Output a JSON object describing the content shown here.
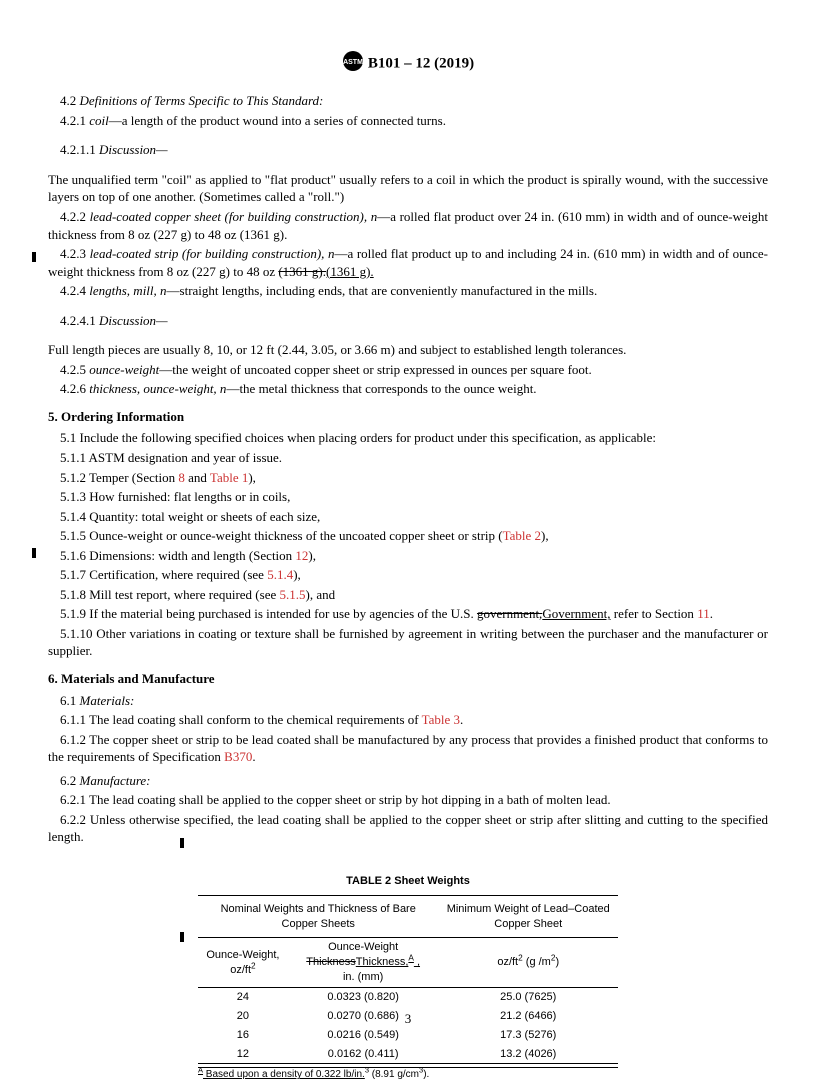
{
  "header": {
    "designation": "B101 – 12 (2019)"
  },
  "s4_2": "4.2 ",
  "s4_2_t": "Definitions of Terms Specific to This Standard:",
  "s4_2_1": "4.2.1 ",
  "coil_term": "coil",
  "coil_def": "—a length of the product wound into a series of connected turns.",
  "s4_2_1_1": "4.2.1.1 ",
  "discussion": "Discussion—",
  "coil_disc": "The unqualified term \"coil\" as applied to \"flat product\" usually refers to a coil in which the product is spirally wound, with the successive layers on top of one another. (Sometimes called a \"roll.\")",
  "s4_2_2": "4.2.2 ",
  "lcsheet_term": "lead-coated copper sheet (for building construction), n",
  "lcsheet_def": "—a rolled flat product over 24 in. (610 mm) in width and of ounce-weight thickness from 8 oz (227 g) to 48 oz (1361 g).",
  "s4_2_3": "4.2.3 ",
  "lcstrip_term": "lead-coated strip (for building construction), n",
  "lcstrip_def_a": "—a rolled flat product up to and including 24 in. (610 mm) in width and of ounce-weight thickness from 8 oz (227 g) to 48 oz ",
  "lcstrip_strike": "(1361 g).",
  "lcstrip_insert": "(1361 g).",
  "s4_2_4": "4.2.4 ",
  "lengths_term": "lengths, mill, n",
  "lengths_def": "—straight lengths, including ends, that are conveniently manufactured in the mills.",
  "s4_2_4_1": "4.2.4.1 ",
  "lengths_disc": "Full length pieces are usually 8, 10, or 12 ft (2.44, 3.05, or 3.66 m) and subject to established length tolerances.",
  "s4_2_5": "4.2.5 ",
  "ow_term": "ounce-weight",
  "ow_def": "—the weight of uncoated copper sheet or strip expressed in ounces per square foot.",
  "s4_2_6": "4.2.6 ",
  "town_term": "thickness, ounce-weight, n",
  "town_def": "—the metal thickness that corresponds to the ounce weight.",
  "s5_head": "5.  Ordering Information",
  "s5_1": "5.1 Include the following specified choices when placing orders for product under this specification, as applicable:",
  "s5_1_1": "5.1.1 ASTM designation and year of issue.",
  "s5_1_2a": "5.1.2 Temper (Section ",
  "link_8": "8",
  "s5_1_2b": " and ",
  "link_t1": "Table 1",
  "s5_1_2c": "),",
  "s5_1_3": "5.1.3 How furnished: flat lengths or in coils,",
  "s5_1_4": "5.1.4 Quantity: total weight or sheets of each size,",
  "s5_1_5a": "5.1.5 Ounce-weight or ounce-weight thickness of the uncoated copper sheet or strip (",
  "link_t2": "Table 2",
  "s5_1_5b": "),",
  "s5_1_6a": "5.1.6 Dimensions: width and length (Section ",
  "link_12": "12",
  "s5_1_6b": "),",
  "s5_1_7a": "5.1.7 Certification, where required (see ",
  "link_514": "5.1.4",
  "s5_1_7b": "),",
  "s5_1_8a": "5.1.8 Mill test report, where required (see ",
  "link_515": "5.1.5",
  "s5_1_8b": "), and",
  "s5_1_9a": "5.1.9 If the material being purchased is intended for use by agencies of the U.S. ",
  "gov_strike": "government,",
  "gov_insert": "Government,",
  "s5_1_9b": " refer to Section ",
  "link_11": "11",
  "s5_1_9c": ".",
  "s5_1_10": "5.1.10 Other variations in coating or texture shall be furnished by agreement in writing between the purchaser and the manufacturer or supplier.",
  "s6_head": "6.  Materials and Manufacture",
  "s6_1": "6.1 ",
  "s6_1_t": "Materials:",
  "s6_1_1a": "6.1.1 The lead coating shall conform to the chemical requirements of ",
  "link_t3": "Table 3",
  "s6_1_1b": ".",
  "s6_1_2a": "6.1.2 The copper sheet or strip to be lead coated shall be manufactured by any process that provides a finished product that conforms to the requirements of Specification ",
  "link_b370": "B370",
  "s6_1_2b": ".",
  "s6_2": "6.2 ",
  "s6_2_t": "Manufacture:",
  "s6_2_1": "6.2.1 The lead coating shall be applied to the copper sheet or strip by hot dipping in a bath of molten lead.",
  "s6_2_2": "6.2.2 Unless otherwise specified, the lead coating shall be applied to the copper sheet or strip after slitting and cutting to the specified length.",
  "table": {
    "title": "TABLE 2 Sheet Weights",
    "head_left": "Nominal Weights and Thickness of Bare Copper Sheets",
    "head_right": "Minimum Weight of Lead–Coated Copper Sheet",
    "col1_a": "Ounce-Weight,",
    "col1_b": "oz/ft",
    "col2_a": "Ounce-Weight",
    "col2_strike": "Thickness",
    "col2_insert": "Thickness,",
    "col2_sup": "A",
    "col2_c": "in. (mm)",
    "col3_a": "oz/ft",
    "col3_b": " (g /m",
    "col3_c": ")",
    "rows": [
      [
        "24",
        "0.0323 (0.820)",
        "25.0 (7625)"
      ],
      [
        "20",
        "0.0270 (0.686)",
        "21.2 (6466)"
      ],
      [
        "16",
        "0.0216 (0.549)",
        "17.3 (5276)"
      ],
      [
        "12",
        "0.0162 (0.411)",
        "13.2 (4026)"
      ]
    ],
    "footnote_sup": "A",
    "footnote_a": " Based upon a density of 0.322 lb/in.",
    "footnote_b": " (8.91 g/cm",
    "footnote_c": ")."
  },
  "page_num": "3"
}
